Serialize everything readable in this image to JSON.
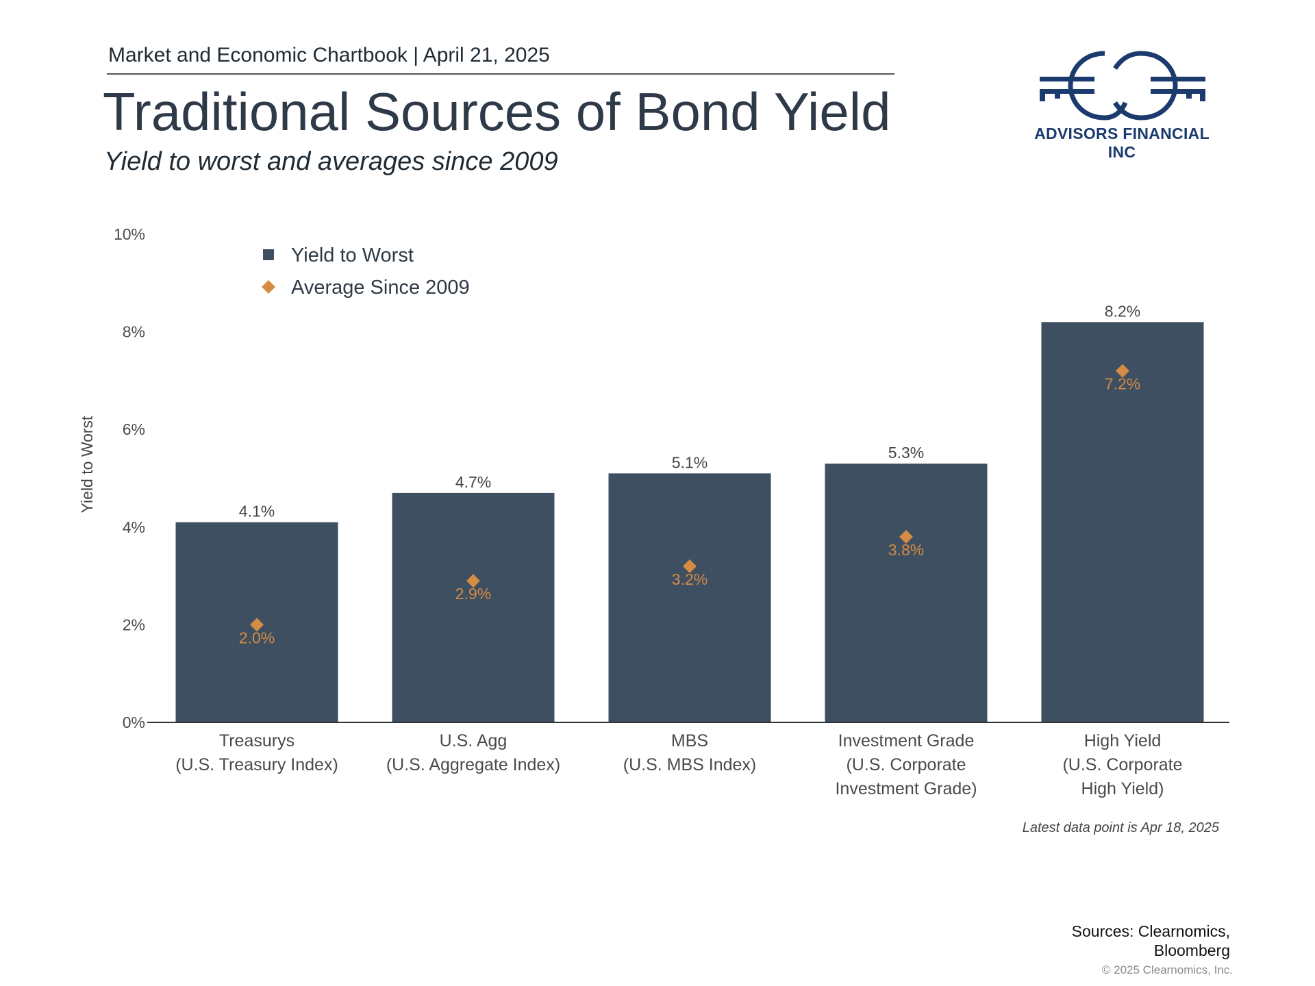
{
  "header": {
    "chartbook": "Market and Economic Chartbook | April 21, 2025",
    "title": "Traditional Sources of Bond Yield",
    "subtitle": "Yield to worst and averages since 2009"
  },
  "logo": {
    "text": "ADVISORS FINANCIAL INC",
    "color": "#1b3a6e"
  },
  "chart_data": {
    "type": "bar",
    "categories": [
      [
        "Treasurys",
        "(U.S. Treasury Index)"
      ],
      [
        "U.S. Agg",
        "(U.S. Aggregate Index)"
      ],
      [
        "MBS",
        "(U.S. MBS Index)"
      ],
      [
        "Investment Grade",
        "(U.S. Corporate",
        "Investment Grade)"
      ],
      [
        "High Yield",
        "(U.S. Corporate",
        "High Yield)"
      ]
    ],
    "series": [
      {
        "name": "Yield to Worst",
        "kind": "bar",
        "color": "#3d4f60",
        "values": [
          4.1,
          4.7,
          5.1,
          5.3,
          8.2
        ],
        "labels": [
          "4.1%",
          "4.7%",
          "5.1%",
          "5.3%",
          "8.2%"
        ]
      },
      {
        "name": "Average Since 2009",
        "kind": "marker-diamond",
        "color": "#d58c45",
        "values": [
          2.0,
          2.9,
          3.2,
          3.8,
          7.2
        ],
        "labels": [
          "2.0%",
          "2.9%",
          "3.2%",
          "3.8%",
          "7.2%"
        ]
      }
    ],
    "ylabel": "Yield to Worst",
    "ylim": [
      0,
      10
    ],
    "yticks": [
      "0%",
      "2%",
      "4%",
      "6%",
      "8%",
      "10%"
    ],
    "legend": "top-left",
    "grid": false
  },
  "footer": {
    "note": "Latest data point is Apr 18, 2025",
    "sources_line1": "Sources: Clearnomics,",
    "sources_line2": "Bloomberg",
    "copyright": "© 2025 Clearnomics, Inc."
  }
}
